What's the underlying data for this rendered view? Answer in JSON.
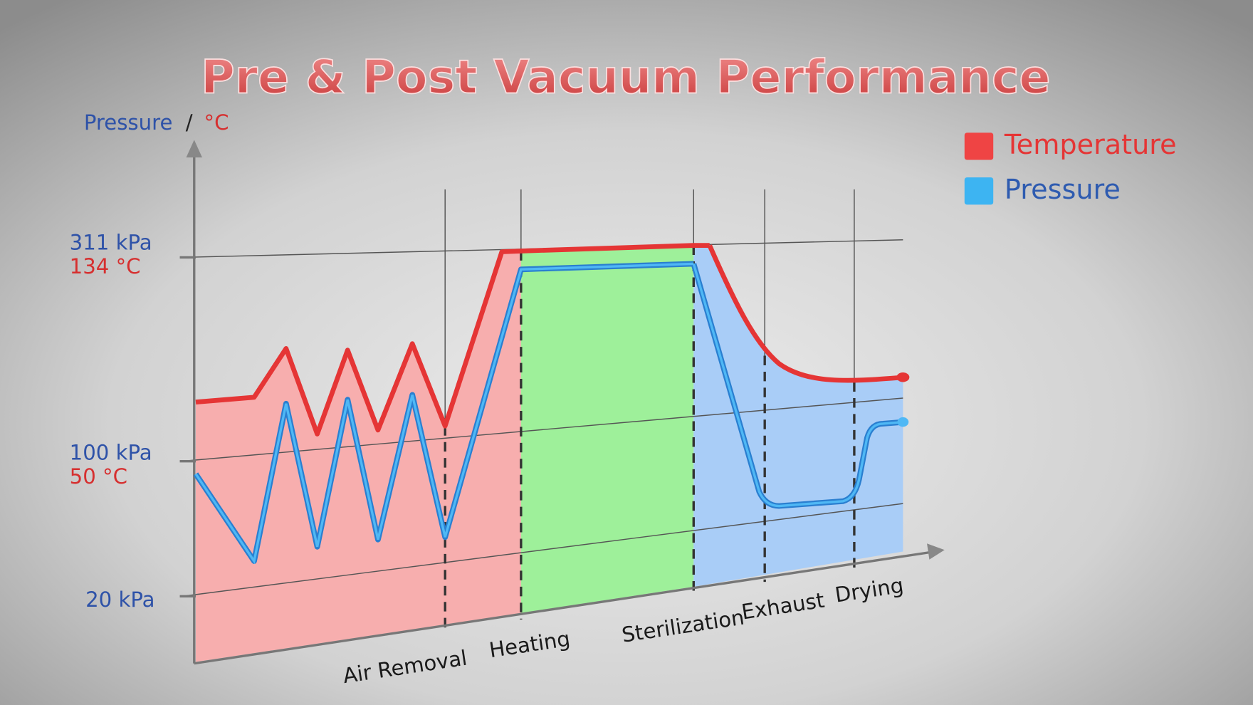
{
  "title": "Pre & Post Vacuum Performance",
  "axis_label": {
    "pressure": "Pressure",
    "separator": "/",
    "temperature": "°C"
  },
  "y_labels": [
    {
      "pressure": "311 kPa",
      "temperature": "134 °C"
    },
    {
      "pressure": "100 kPa",
      "temperature": "50 °C"
    },
    {
      "pressure": "20 kPa"
    }
  ],
  "phases": [
    "Air Removal",
    "Heating",
    "Sterilization",
    "Exhaust",
    "Drying"
  ],
  "legend": [
    "Temperature",
    "Pressure"
  ]
}
